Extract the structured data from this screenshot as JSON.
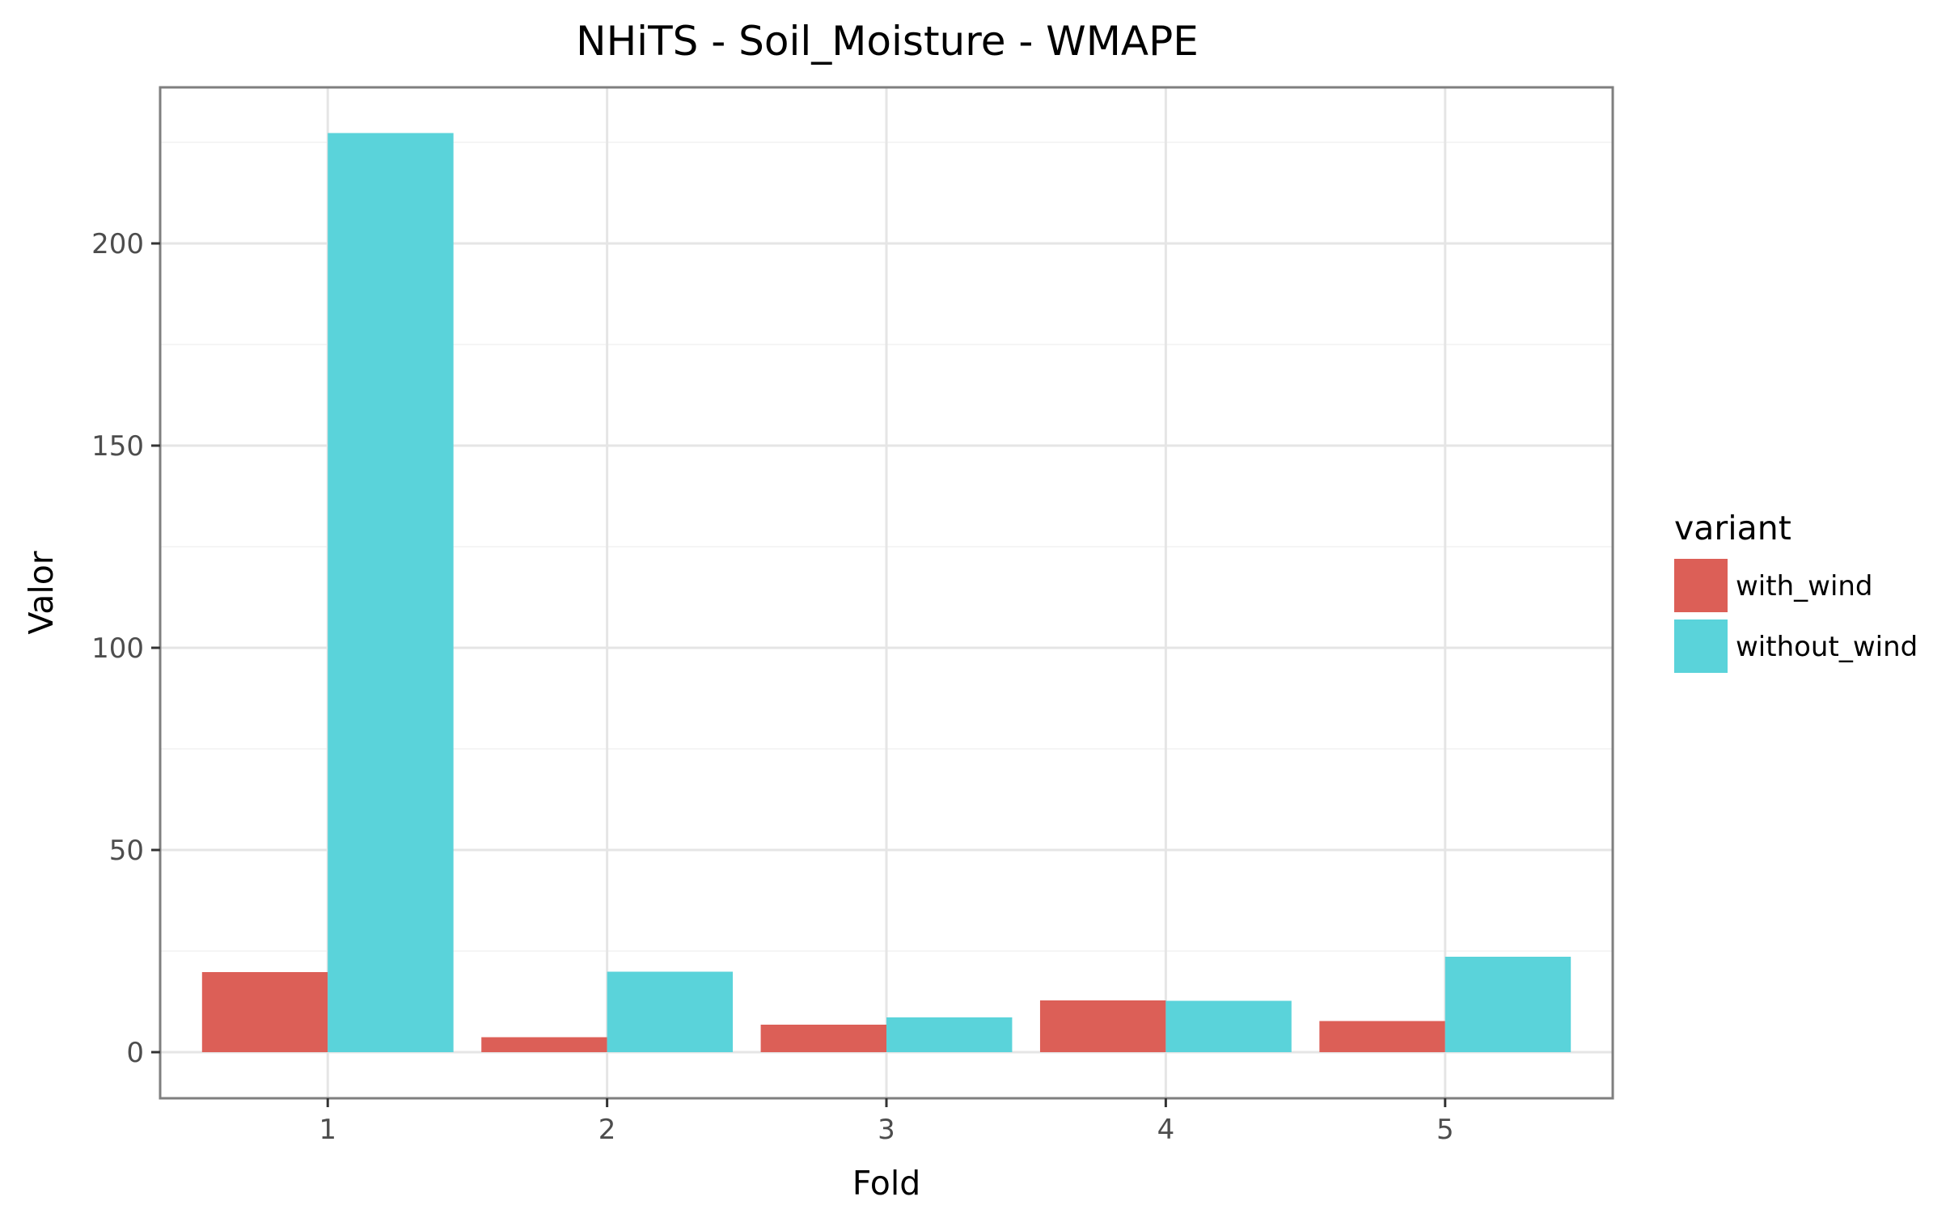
{
  "chart_data": {
    "type": "bar",
    "title": "NHiTS - Soil_Moisture - WMAPE",
    "xlabel": "Fold",
    "ylabel": "Valor",
    "categories": [
      "1",
      "2",
      "3",
      "4",
      "5"
    ],
    "series": [
      {
        "name": "with_wind",
        "color": "#DC5F57",
        "values": [
          19.8,
          3.7,
          6.8,
          12.8,
          7.7
        ]
      },
      {
        "name": "without_wind",
        "color": "#5AD3DA",
        "values": [
          227.3,
          19.9,
          8.6,
          12.7,
          23.6
        ]
      }
    ],
    "ylim": [
      -11.4,
      238.6
    ],
    "yticks": [
      0,
      50,
      100,
      150,
      200
    ],
    "grid": true,
    "legend": {
      "title": "variant",
      "position": "right"
    }
  }
}
